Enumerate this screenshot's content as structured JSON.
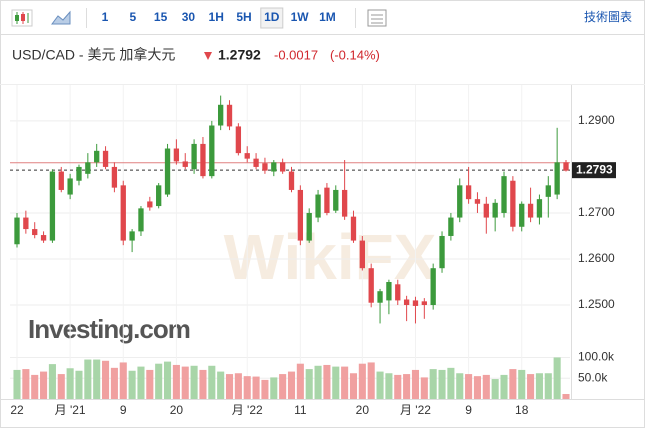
{
  "toolbar": {
    "buttons": [
      "1",
      "5",
      "15",
      "30",
      "1H",
      "5H",
      "1D",
      "1W",
      "1M"
    ],
    "active": "1D",
    "chart_link": "技術圖表"
  },
  "header": {
    "symbol": "USD/CAD - 美元 加拿大元",
    "price": 1.2792,
    "change": -0.0017,
    "change_pct": {
      "value": -0.14,
      "label": "(-0.14%)"
    }
  },
  "chart_data": {
    "type": "candlestick",
    "logo": "Investing.com",
    "watermark": "WikiFX",
    "categories": [
      "22",
      null,
      null,
      null,
      null,
      null,
      "月 '21",
      null,
      null,
      null,
      null,
      null,
      "9",
      null,
      null,
      null,
      null,
      null,
      "20",
      null,
      null,
      null,
      null,
      null,
      null,
      null,
      "月 '22",
      null,
      null,
      null,
      null,
      null,
      "11",
      null,
      null,
      null,
      null,
      null,
      null,
      "20",
      null,
      null,
      null,
      null,
      null,
      "月 '22",
      null,
      null,
      null,
      null,
      null,
      "9",
      null,
      null,
      null,
      null,
      null,
      "18",
      null,
      null,
      null,
      null,
      null
    ],
    "open": [
      1.2632,
      1.269,
      1.2665,
      1.2652,
      1.264,
      1.279,
      1.274,
      1.277,
      1.2785,
      1.281,
      1.2835,
      1.28,
      1.276,
      1.264,
      1.266,
      1.2725,
      1.2715,
      1.274,
      1.284,
      1.2812,
      1.2795,
      1.285,
      1.278,
      1.289,
      1.2935,
      1.2888,
      1.283,
      1.2818,
      1.2808,
      1.279,
      1.281,
      1.279,
      1.275,
      1.264,
      1.269,
      1.2755,
      1.2705,
      1.275,
      1.2692,
      1.264,
      1.258,
      1.2505,
      1.251,
      1.2545,
      1.2512,
      1.251,
      1.2508,
      1.25,
      1.258,
      1.265,
      1.269,
      1.276,
      1.273,
      1.272,
      1.269,
      1.27,
      1.277,
      1.267,
      1.272,
      1.269,
      1.2735,
      1.274,
      1.281
    ],
    "high": [
      1.27,
      1.2705,
      1.268,
      1.266,
      1.2795,
      1.28,
      1.2785,
      1.2805,
      1.283,
      1.285,
      1.2845,
      1.281,
      1.277,
      1.2665,
      1.2715,
      1.2735,
      1.2765,
      1.285,
      1.286,
      1.283,
      1.286,
      1.2865,
      1.29,
      1.2955,
      1.2945,
      1.2895,
      1.2845,
      1.283,
      1.282,
      1.2815,
      1.2818,
      1.28,
      1.276,
      1.271,
      1.275,
      1.2765,
      1.276,
      1.2815,
      1.2705,
      1.265,
      1.259,
      1.2535,
      1.2555,
      1.2555,
      1.252,
      1.2518,
      1.2515,
      1.259,
      1.266,
      1.27,
      1.2775,
      1.28,
      1.2745,
      1.2735,
      1.273,
      1.279,
      1.278,
      1.2725,
      1.2755,
      1.274,
      1.278,
      1.2885,
      1.2815
    ],
    "low": [
      1.2625,
      1.2655,
      1.2645,
      1.2635,
      1.2635,
      1.2745,
      1.273,
      1.276,
      1.2775,
      1.28,
      1.2795,
      1.2745,
      1.263,
      1.2615,
      1.265,
      1.2705,
      1.271,
      1.2735,
      1.2805,
      1.2795,
      1.2785,
      1.2775,
      1.2775,
      1.288,
      1.288,
      1.2825,
      1.281,
      1.2795,
      1.2785,
      1.278,
      1.2785,
      1.2745,
      1.263,
      1.2635,
      1.268,
      1.2695,
      1.27,
      1.2685,
      1.2635,
      1.2575,
      1.2495,
      1.246,
      1.248,
      1.25,
      1.2465,
      1.246,
      1.247,
      1.249,
      1.257,
      1.264,
      1.268,
      1.272,
      1.27,
      1.2655,
      1.266,
      1.269,
      1.266,
      1.266,
      1.268,
      1.2675,
      1.269,
      1.273,
      1.279
    ],
    "close": [
      1.269,
      1.2665,
      1.2652,
      1.264,
      1.279,
      1.275,
      1.2775,
      1.28,
      1.281,
      1.2835,
      1.28,
      1.2755,
      1.264,
      1.266,
      1.271,
      1.2712,
      1.276,
      1.284,
      1.2812,
      1.28,
      1.285,
      1.278,
      1.289,
      1.2935,
      1.2888,
      1.283,
      1.2818,
      1.28,
      1.2792,
      1.281,
      1.279,
      1.275,
      1.264,
      1.27,
      1.274,
      1.27,
      1.275,
      1.2692,
      1.264,
      1.258,
      1.2505,
      1.253,
      1.255,
      1.251,
      1.25,
      1.2498,
      1.25,
      1.258,
      1.265,
      1.269,
      1.276,
      1.273,
      1.272,
      1.269,
      1.2722,
      1.278,
      1.267,
      1.272,
      1.269,
      1.273,
      1.276,
      1.281,
      1.2792
    ],
    "volume": [
      70000,
      72000,
      58000,
      66000,
      84000,
      60000,
      74000,
      68000,
      95000,
      95000,
      92000,
      75000,
      88000,
      68000,
      78000,
      70000,
      85000,
      90000,
      82000,
      78000,
      80000,
      70000,
      80000,
      66000,
      60000,
      62000,
      55000,
      54000,
      46000,
      52000,
      60000,
      66000,
      85000,
      72000,
      80000,
      82000,
      78000,
      78000,
      62000,
      85000,
      88000,
      66000,
      62000,
      58000,
      60000,
      70000,
      52000,
      72000,
      70000,
      75000,
      62000,
      60000,
      55000,
      58000,
      48000,
      58000,
      72000,
      70000,
      60000,
      62000,
      62000,
      100000,
      12000
    ],
    "up_color": "#3c9a3c",
    "down_color": "#e0474c",
    "volume_up_color": "#a8d5a8",
    "volume_down_color": "#f0a0a0",
    "ylim": [
      1.2424,
      1.2978
    ],
    "yticks": [
      {
        "value": 1.29,
        "label": "1.2900"
      },
      {
        "value": 1.27,
        "label": "1.2700"
      },
      {
        "value": 1.26,
        "label": "1.2600"
      },
      {
        "value": 1.25,
        "label": "1.2500"
      }
    ],
    "volume_ylim": [
      0,
      130000
    ],
    "volume_yticks": [
      {
        "value": 100000,
        "label": "100.0k"
      },
      {
        "value": 50000,
        "label": "50.0k"
      }
    ],
    "last_price": 1.2793,
    "previous_close": 1.2809,
    "grid": true
  }
}
